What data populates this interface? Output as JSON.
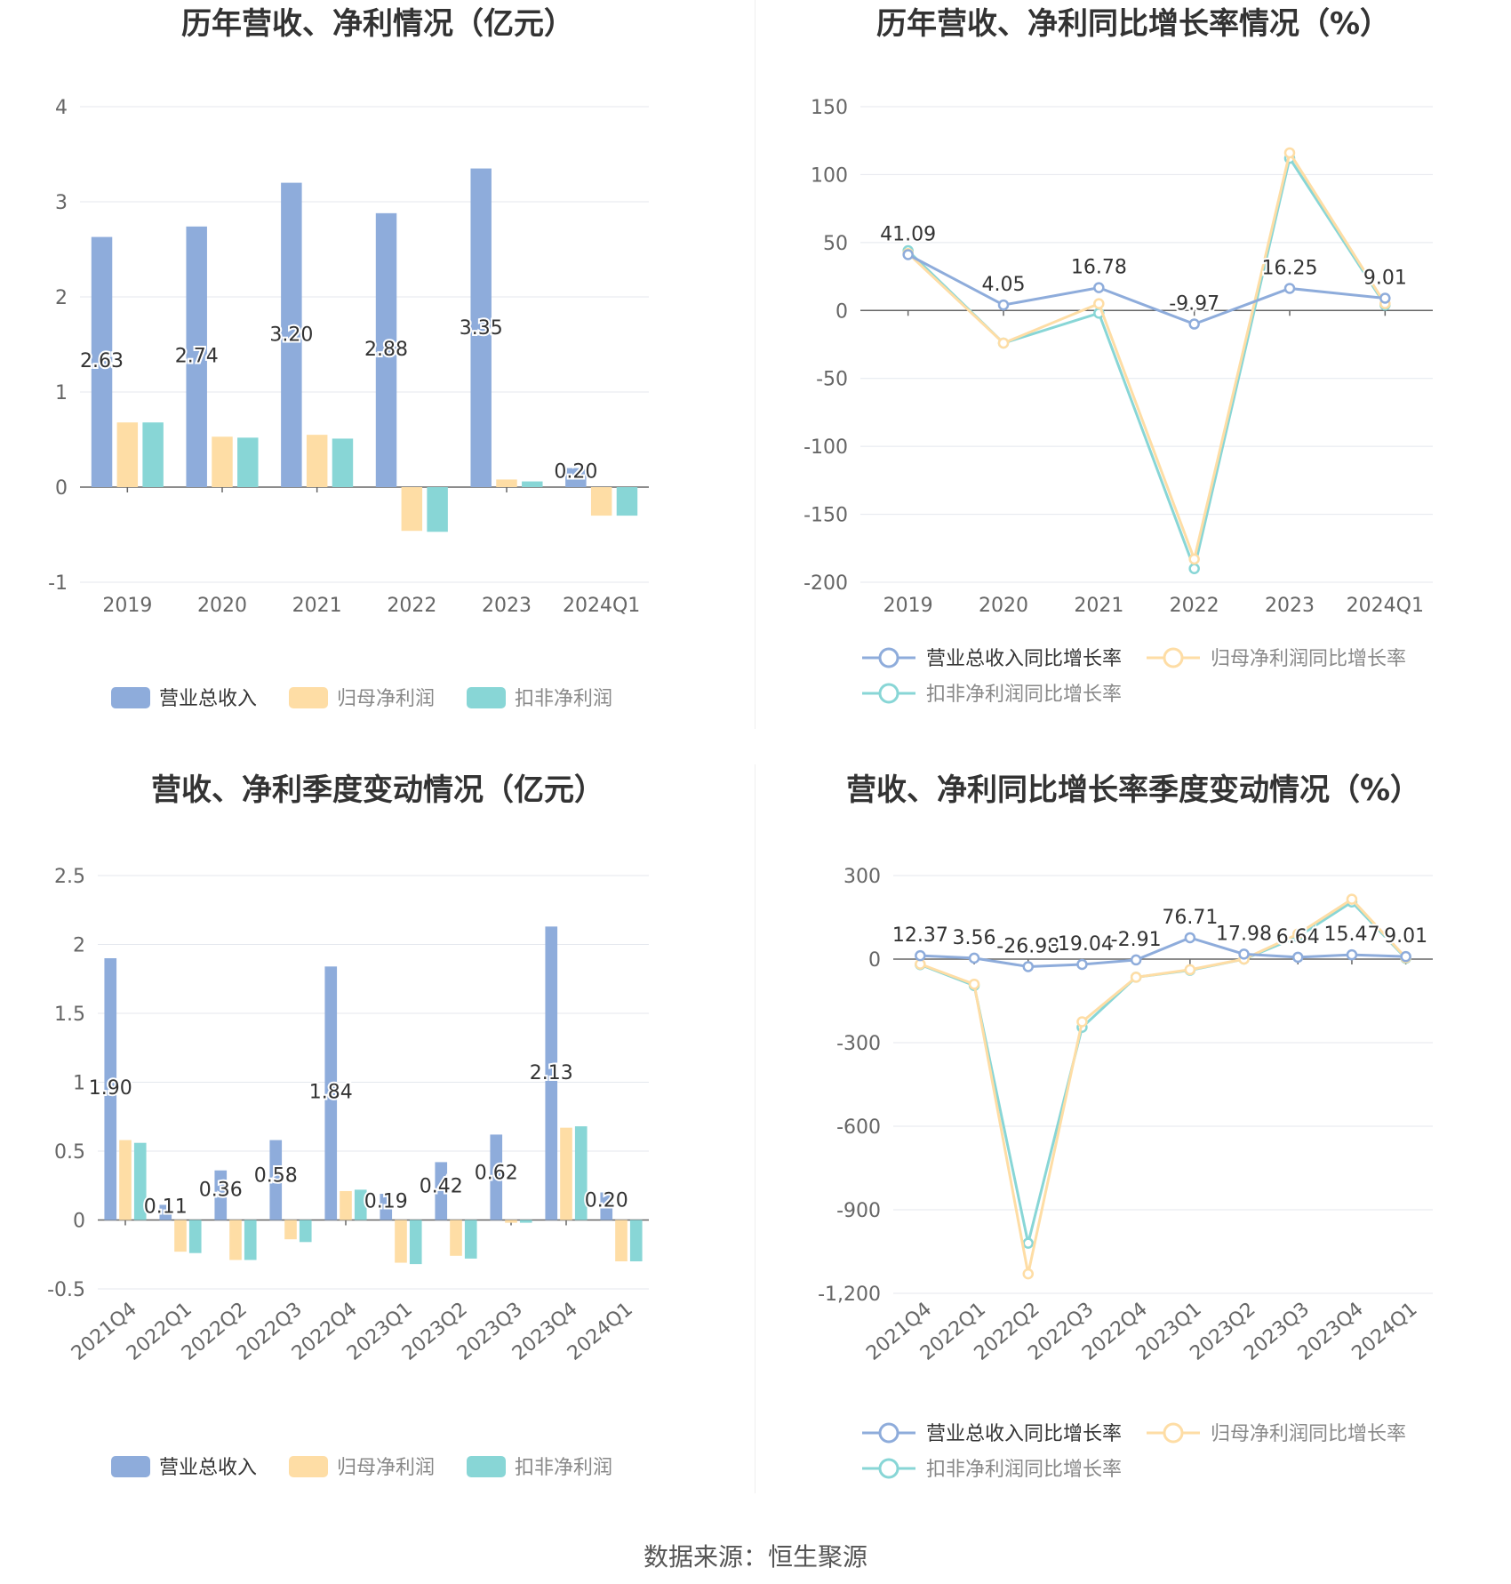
{
  "footer": {
    "source": "数据来源：恒生聚源"
  },
  "colors": {
    "revenue": "#8eacdb",
    "net_profit": "#fedda5",
    "deducted_profit": "#88d6d6"
  },
  "chart_data": [
    {
      "id": "annual-amounts",
      "type": "bar",
      "title": "历年营收、净利情况（亿元）",
      "categories": [
        "2019",
        "2020",
        "2021",
        "2022",
        "2023",
        "2024Q1"
      ],
      "ylim": [
        -1,
        4
      ],
      "yticks": [
        -1,
        0,
        1,
        2,
        3,
        4
      ],
      "grid": true,
      "legend_position": "bottom",
      "series": [
        {
          "name": "营业总收入",
          "color": "#8eacdb",
          "values": [
            2.63,
            2.74,
            3.2,
            2.88,
            3.35,
            0.2
          ],
          "labels": [
            "2.63",
            "2.74",
            "3.20",
            "2.88",
            "3.35",
            "0.20"
          ]
        },
        {
          "name": "归母净利润",
          "color": "#fedda5",
          "values": [
            0.68,
            0.53,
            0.55,
            -0.46,
            0.08,
            -0.3
          ]
        },
        {
          "name": "扣非净利润",
          "color": "#88d6d6",
          "values": [
            0.68,
            0.52,
            0.51,
            -0.47,
            0.06,
            -0.3
          ]
        }
      ]
    },
    {
      "id": "annual-growth",
      "type": "line",
      "title": "历年营收、净利同比增长率情况（%）",
      "categories": [
        "2019",
        "2020",
        "2021",
        "2022",
        "2023",
        "2024Q1"
      ],
      "ylim": [
        -200,
        150
      ],
      "yticks": [
        -200,
        -150,
        -100,
        -50,
        0,
        50,
        100,
        150
      ],
      "grid": true,
      "legend_position": "bottom",
      "series": [
        {
          "name": "营业总收入同比增长率",
          "color": "#8eacdb",
          "values": [
            41.09,
            4.05,
            16.78,
            -9.97,
            16.25,
            9.01
          ],
          "labels": [
            "41.09",
            "4.05",
            "16.78",
            "-9.97",
            "16.25",
            "9.01"
          ]
        },
        {
          "name": "归母净利润同比增长率",
          "color": "#fedda5",
          "values": [
            42,
            -24,
            5,
            -183,
            116,
            5
          ]
        },
        {
          "name": "扣非净利润同比增长率",
          "color": "#88d6d6",
          "values": [
            44,
            -24,
            -2,
            -190,
            112,
            4
          ]
        }
      ]
    },
    {
      "id": "quarterly-amounts",
      "type": "bar",
      "title": "营收、净利季度变动情况（亿元）",
      "categories": [
        "2021Q4",
        "2022Q1",
        "2022Q2",
        "2022Q3",
        "2022Q4",
        "2023Q1",
        "2023Q2",
        "2023Q3",
        "2023Q4",
        "2024Q1"
      ],
      "ylim": [
        -0.5,
        2.5
      ],
      "yticks": [
        -0.5,
        0,
        0.5,
        1,
        1.5,
        2,
        2.5
      ],
      "grid": true,
      "legend_position": "bottom",
      "series": [
        {
          "name": "营业总收入",
          "color": "#8eacdb",
          "values": [
            1.9,
            0.11,
            0.36,
            0.58,
            1.84,
            0.19,
            0.42,
            0.62,
            2.13,
            0.2
          ],
          "labels": [
            "1.90",
            "0.11",
            "0.36",
            "0.58",
            "1.84",
            "0.19",
            "0.42",
            "0.62",
            "2.13",
            "0.20"
          ]
        },
        {
          "name": "归母净利润",
          "color": "#fedda5",
          "values": [
            0.58,
            -0.23,
            -0.29,
            -0.14,
            0.21,
            -0.31,
            -0.26,
            -0.02,
            0.67,
            -0.3
          ]
        },
        {
          "name": "扣非净利润",
          "color": "#88d6d6",
          "values": [
            0.56,
            -0.24,
            -0.29,
            -0.16,
            0.22,
            -0.32,
            -0.28,
            -0.02,
            0.68,
            -0.3
          ]
        }
      ]
    },
    {
      "id": "quarterly-growth",
      "type": "line",
      "title": "营收、净利同比增长率季度变动情况（%）",
      "categories": [
        "2021Q4",
        "2022Q1",
        "2022Q2",
        "2022Q3",
        "2022Q4",
        "2023Q1",
        "2023Q2",
        "2023Q3",
        "2023Q4",
        "2024Q1"
      ],
      "ylim": [
        -1200,
        300
      ],
      "yticks": [
        -1200,
        -900,
        -600,
        -300,
        0,
        300
      ],
      "ytick_labels": [
        "-1,200",
        "-900",
        "-600",
        "-300",
        "0",
        "300"
      ],
      "grid": true,
      "legend_position": "bottom",
      "series": [
        {
          "name": "营业总收入同比增长率",
          "color": "#8eacdb",
          "values": [
            12.37,
            3.56,
            -26.98,
            -19.04,
            -2.91,
            76.71,
            17.98,
            6.64,
            15.47,
            9.01
          ],
          "labels": [
            "12.37",
            "3.56",
            "-26.98",
            "-19.04",
            "-2.91",
            "76.71",
            "17.98",
            "6.64",
            "15.47",
            "9.01"
          ]
        },
        {
          "name": "归母净利润同比增长率",
          "color": "#fedda5",
          "values": [
            -18,
            -90,
            -1130,
            -225,
            -65,
            -38,
            0,
            90,
            215,
            5
          ]
        },
        {
          "name": "扣非净利润同比增长率",
          "color": "#88d6d6",
          "values": [
            -20,
            -95,
            -1020,
            -245,
            -65,
            -40,
            0,
            80,
            205,
            3
          ]
        }
      ]
    }
  ]
}
